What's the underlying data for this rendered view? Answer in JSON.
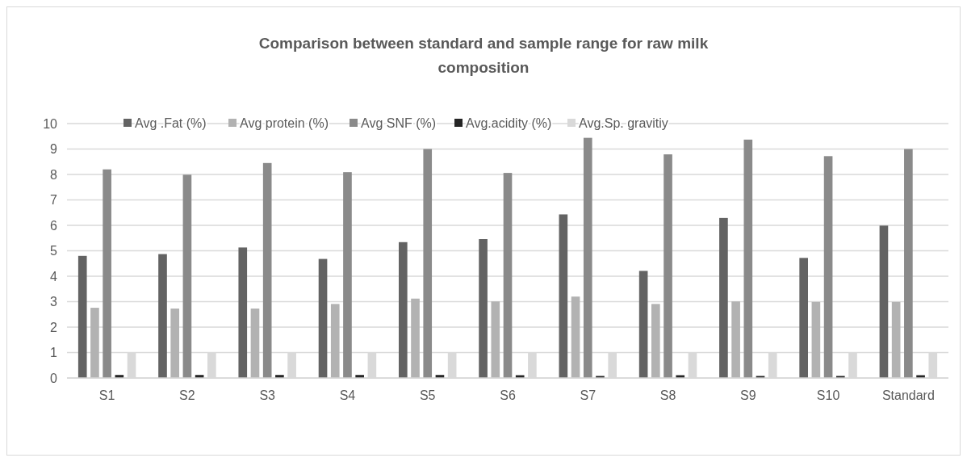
{
  "chart_data": {
    "type": "bar",
    "title": "Comparison between standard and sample range for raw milk composition",
    "categories": [
      "S1",
      "S2",
      "S3",
      "S4",
      "S5",
      "S6",
      "S7",
      "S8",
      "S9",
      "S10",
      "Standard"
    ],
    "series": [
      {
        "name": "Avg .Fat (%)",
        "color": "#636363",
        "values": [
          4.8,
          4.87,
          5.13,
          4.68,
          5.34,
          5.46,
          6.43,
          4.21,
          6.29,
          4.72,
          5.99
        ]
      },
      {
        "name": "Avg protein (%)",
        "color": "#b2b2b2",
        "values": [
          2.76,
          2.73,
          2.73,
          2.91,
          3.12,
          3.01,
          3.2,
          2.91,
          3.01,
          2.99,
          2.99
        ]
      },
      {
        "name": "Avg SNF (%)",
        "color": "#8a8a8a",
        "values": [
          8.2,
          7.99,
          8.45,
          8.09,
          9.0,
          8.06,
          9.44,
          8.79,
          9.37,
          8.72,
          9.0
        ]
      },
      {
        "name": "Avg.acidity (%)",
        "color": "#252525",
        "values": [
          0.12,
          0.12,
          0.12,
          0.12,
          0.12,
          0.11,
          0.08,
          0.11,
          0.08,
          0.08,
          0.11
        ]
      },
      {
        "name": "Avg.Sp. gravitiy",
        "color": "#d9d9d9",
        "values": [
          1,
          1,
          1,
          1,
          1,
          1,
          1,
          1,
          1,
          1,
          1
        ]
      }
    ],
    "ylim": [
      0,
      10
    ],
    "yticks": [
      0,
      1,
      2,
      3,
      4,
      5,
      6,
      7,
      8,
      9,
      10
    ],
    "grid": "y",
    "legend": "top"
  }
}
